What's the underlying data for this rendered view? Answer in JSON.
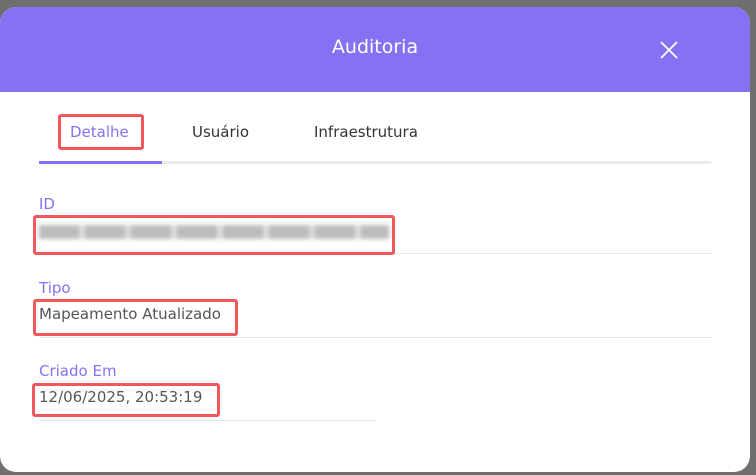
{
  "modal": {
    "title": "Auditoria",
    "close_icon": "close-icon",
    "accent_color": "#8472f2",
    "tabs": [
      {
        "label": "Detalhe",
        "active": true
      },
      {
        "label": "Usuário",
        "active": false
      },
      {
        "label": "Infraestrutura",
        "active": false
      }
    ],
    "fields": {
      "id": {
        "label": "ID",
        "value_blurred": true
      },
      "tipo": {
        "label": "Tipo",
        "value": "Mapeamento Atualizado"
      },
      "criado_em": {
        "label": "Criado Em",
        "value": "12/06/2025, 20:53:19"
      }
    }
  },
  "annotation_color": "#f0595c"
}
